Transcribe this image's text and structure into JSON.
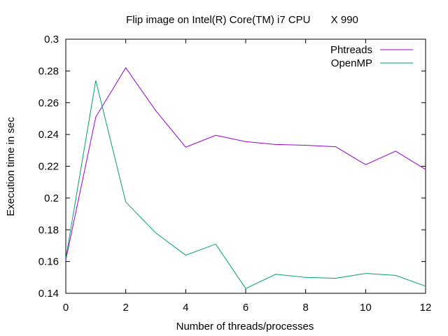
{
  "chart_data": {
    "type": "line",
    "title": "Flip image on Intel(R) Core(TM) i7 CPU       X 990",
    "xlabel": "Number of threads/processes",
    "ylabel": "Execution time in sec",
    "xlim": [
      0,
      12
    ],
    "ylim": [
      0.14,
      0.3
    ],
    "xticks": [
      0,
      2,
      4,
      6,
      8,
      10,
      12
    ],
    "xtick_labels": [
      "0",
      "2",
      "4",
      "6",
      "8",
      "10",
      "12"
    ],
    "yticks": [
      0.14,
      0.16,
      0.18,
      0.2,
      0.22,
      0.24,
      0.26,
      0.28,
      0.3
    ],
    "ytick_labels": [
      "0.14",
      "0.16",
      "0.18",
      "0.2",
      "0.22",
      "0.24",
      "0.26",
      "0.28",
      "0.3"
    ],
    "grid": false,
    "legend_position": "top-right",
    "x": [
      0,
      1,
      2,
      3,
      4,
      5,
      6,
      7,
      8,
      9,
      10,
      11,
      12
    ],
    "series": [
      {
        "name": "Phtreads",
        "color": "#9400d3",
        "values": [
          0.161,
          0.251,
          0.282,
          0.255,
          0.232,
          0.2395,
          0.2355,
          0.2337,
          0.2332,
          0.2323,
          0.221,
          0.2295,
          0.218
        ]
      },
      {
        "name": "OpenMP",
        "color": "#009e73",
        "values": [
          0.162,
          0.274,
          0.1975,
          0.178,
          0.164,
          0.171,
          0.143,
          0.152,
          0.15,
          0.1495,
          0.1525,
          0.1513,
          0.1445
        ]
      }
    ]
  }
}
